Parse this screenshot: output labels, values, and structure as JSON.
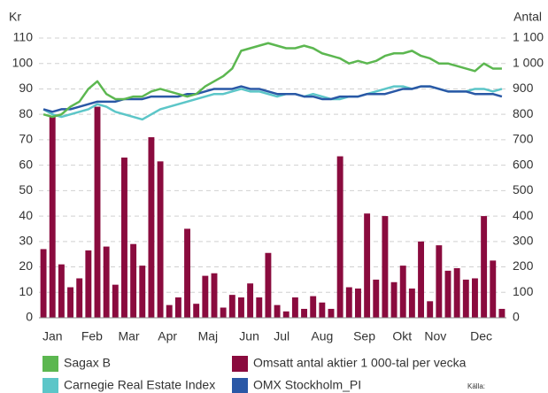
{
  "chart_data": {
    "type": "combo",
    "ylabel": "Kr",
    "y2label": "Antal",
    "x": [
      0,
      1,
      2,
      3,
      4,
      5,
      6,
      7,
      8,
      9,
      10,
      11,
      12,
      13,
      14,
      15,
      16,
      17,
      18,
      19,
      20,
      21,
      22,
      23,
      24,
      25,
      26,
      27,
      28,
      29,
      30,
      31,
      32,
      33,
      34,
      35,
      36,
      37,
      38,
      39,
      40,
      41,
      42,
      43,
      44,
      45,
      46,
      47,
      48,
      49,
      50,
      51
    ],
    "xlim": [
      -0.5,
      51.5
    ],
    "xticks": [
      {
        "value": 1,
        "label": "Jan"
      },
      {
        "value": 5.4,
        "label": "Feb"
      },
      {
        "value": 9.5,
        "label": "Mar"
      },
      {
        "value": 13.8,
        "label": "Apr"
      },
      {
        "value": 18.3,
        "label": "Maj"
      },
      {
        "value": 22.9,
        "label": "Jun"
      },
      {
        "value": 26.5,
        "label": "Jul"
      },
      {
        "value": 31,
        "label": "Aug"
      },
      {
        "value": 35.7,
        "label": "Sep"
      },
      {
        "value": 39.9,
        "label": "Okt"
      },
      {
        "value": 43.6,
        "label": "Nov"
      },
      {
        "value": 48.7,
        "label": "Dec"
      }
    ],
    "ylim": [
      0,
      110
    ],
    "yticks": [
      0,
      10,
      20,
      30,
      40,
      50,
      60,
      70,
      80,
      90,
      100,
      110
    ],
    "y2lim": [
      0,
      1100
    ],
    "y2ticks": [
      0,
      100,
      200,
      300,
      400,
      500,
      600,
      700,
      800,
      900,
      {
        "value": 1000,
        "label": "1 000"
      },
      {
        "value": 1100,
        "label": "1 100"
      }
    ],
    "grid": true,
    "series": [
      {
        "name": "Omsatt antal aktier 1 000-tal per vecka",
        "type": "bar",
        "axis": "y2",
        "color": "#8a0b3e",
        "values": [
          270,
          790,
          210,
          120,
          155,
          265,
          830,
          280,
          130,
          630,
          290,
          205,
          710,
          615,
          50,
          80,
          350,
          55,
          165,
          175,
          40,
          90,
          80,
          135,
          80,
          255,
          50,
          25,
          80,
          35,
          85,
          60,
          35,
          635,
          120,
          115,
          410,
          150,
          400,
          140,
          205,
          115,
          300,
          65,
          285,
          185,
          195,
          150,
          155,
          400,
          225,
          35
        ]
      },
      {
        "name": "Carnegie Real Estate Index",
        "type": "line",
        "color": "#5cc6c8",
        "values": [
          82,
          80,
          79,
          80,
          81,
          82,
          84,
          83,
          81,
          80,
          79,
          78,
          80,
          82,
          83,
          84,
          85,
          86,
          87,
          88,
          88,
          89,
          90,
          89,
          89,
          88,
          87,
          88,
          88,
          87,
          88,
          87,
          86,
          86,
          87,
          87,
          88,
          89,
          90,
          91,
          91,
          90,
          91,
          91,
          90,
          89,
          89,
          89,
          90,
          90,
          89,
          90
        ]
      },
      {
        "name": "OMX Stockholm_PI",
        "type": "line",
        "color": "#2a58a6",
        "values": [
          82,
          81,
          82,
          82,
          83,
          84,
          85,
          85,
          85,
          86,
          86,
          86,
          87,
          87,
          87,
          87,
          88,
          88,
          89,
          90,
          90,
          90,
          91,
          90,
          90,
          89,
          88,
          88,
          88,
          87,
          87,
          86,
          86,
          87,
          87,
          87,
          88,
          88,
          88,
          89,
          90,
          90,
          91,
          91,
          90,
          89,
          89,
          89,
          88,
          88,
          88,
          87
        ]
      },
      {
        "name": "Sagax B",
        "type": "line",
        "color": "#5cb750",
        "values": [
          80,
          79,
          80,
          83,
          85,
          90,
          93,
          88,
          86,
          86,
          87,
          87,
          89,
          90,
          89,
          88,
          87,
          88,
          91,
          93,
          95,
          98,
          105,
          106,
          107,
          108,
          107,
          106,
          106,
          107,
          106,
          104,
          103,
          102,
          100,
          101,
          100,
          101,
          103,
          104,
          104,
          105,
          103,
          102,
          100,
          100,
          99,
          98,
          97,
          100,
          98,
          98
        ]
      }
    ],
    "source": "Källa:"
  }
}
